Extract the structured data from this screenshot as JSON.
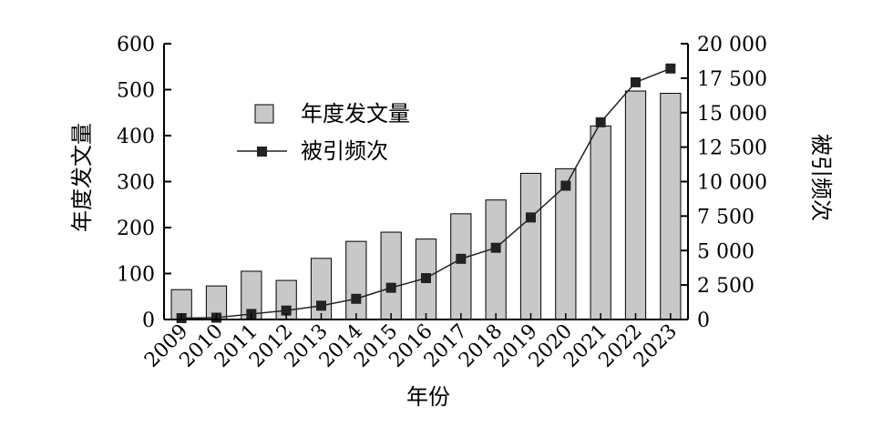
{
  "chart_data": {
    "type": "bar",
    "categories": [
      "2009",
      "2010",
      "2011",
      "2012",
      "2013",
      "2014",
      "2015",
      "2016",
      "2017",
      "2018",
      "2019",
      "2020",
      "2021",
      "2022",
      "2023"
    ],
    "series": [
      {
        "name": "年度发文量",
        "type": "bar",
        "axis": "left",
        "values": [
          65,
          73,
          105,
          85,
          133,
          170,
          190,
          175,
          230,
          260,
          318,
          328,
          421,
          497,
          492
        ],
        "color": "#c8c8c8"
      },
      {
        "name": "被引频次",
        "type": "line",
        "axis": "right",
        "values": [
          100,
          130,
          400,
          650,
          1000,
          1500,
          2300,
          3000,
          4400,
          5200,
          7400,
          9700,
          14300,
          17200,
          18200
        ],
        "color": "#222222"
      }
    ],
    "xlabel": "年份",
    "ylabel_left": "年度发文量",
    "ylabel_right": "被引频次",
    "ylim_left": [
      0,
      600
    ],
    "ylim_right": [
      0,
      20000
    ],
    "yticks_left": [
      "0",
      "100",
      "200",
      "300",
      "400",
      "500",
      "600"
    ],
    "yticks_right": [
      "0",
      "2 500",
      "5 000",
      "7 500",
      "10 000",
      "12 500",
      "15 000",
      "17 500",
      "20 000"
    ],
    "grid": false,
    "legend": "upper-left-inside"
  }
}
